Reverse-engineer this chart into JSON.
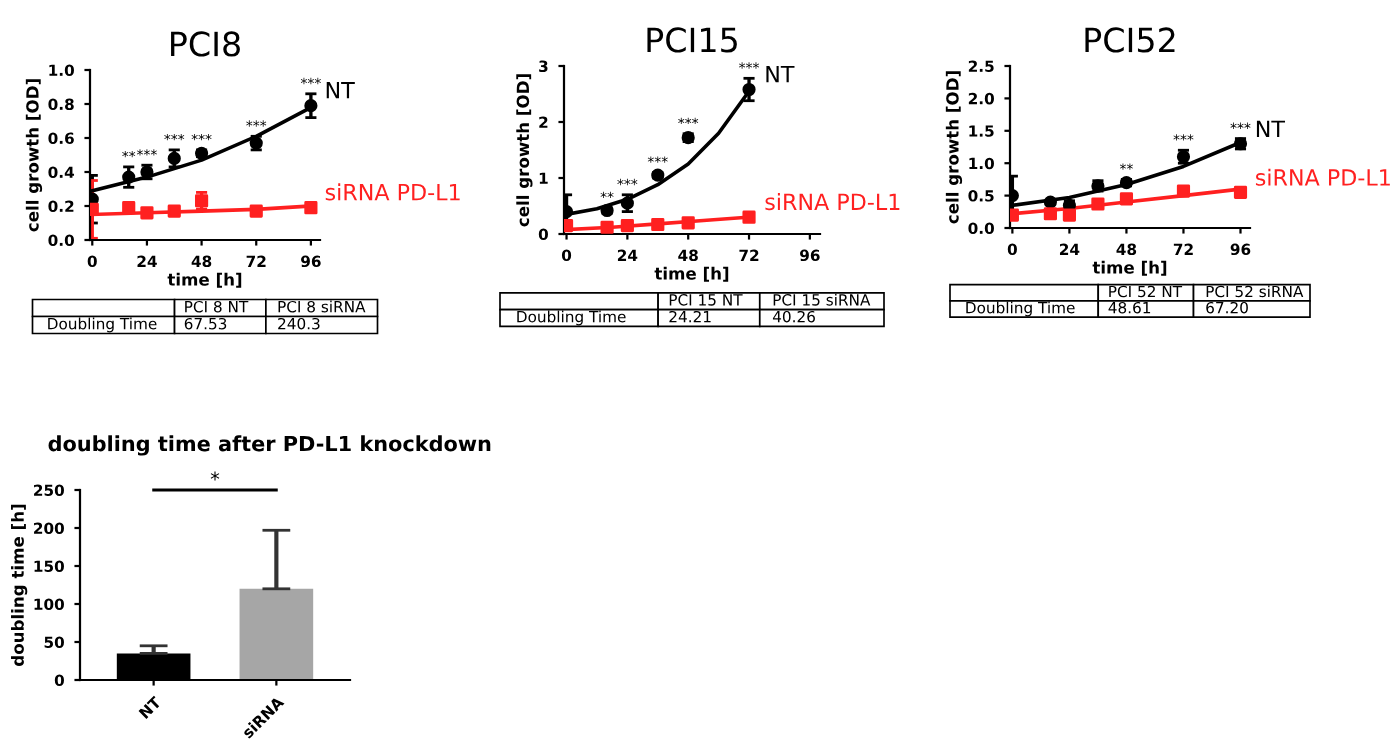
{
  "chart_data": [
    {
      "type": "line",
      "title": "PCI8",
      "xlabel": "time [h]",
      "ylabel": "cell growth [OD]",
      "xlim": [
        -1,
        100
      ],
      "ylim": [
        0,
        1.0
      ],
      "xticks": [
        0,
        24,
        48,
        72,
        96
      ],
      "yticks": [
        {
          "value": 0,
          "label": "0.0"
        },
        {
          "value": 0.2,
          "label": "0.2"
        },
        {
          "value": 0.4,
          "label": "0.4"
        },
        {
          "value": 0.6,
          "label": "0.6"
        },
        {
          "value": 0.8,
          "label": "0.8"
        },
        {
          "value": 1.0,
          "label": "1.0"
        }
      ],
      "grid": false,
      "legend": false,
      "series": [
        {
          "name": "NT",
          "type": "scatter",
          "marker": "circle",
          "color": "#000000",
          "x": [
            0,
            16,
            24,
            36,
            48,
            72,
            96
          ],
          "values": [
            0.24,
            0.37,
            0.4,
            0.48,
            0.51,
            0.57,
            0.79
          ],
          "errors": [
            0.14,
            0.06,
            0.04,
            0.05,
            0.02,
            0.04,
            0.07
          ]
        },
        {
          "name": "siRNA PD-L1",
          "type": "scatter",
          "marker": "square",
          "color": "#ff2020",
          "x": [
            0,
            16,
            24,
            36,
            48,
            72,
            96
          ],
          "values": [
            0.18,
            0.19,
            0.16,
            0.17,
            0.23,
            0.17,
            0.19
          ],
          "errors": [
            0.17,
            0.02,
            0.01,
            0.02,
            0.05,
            0.02,
            0.01
          ]
        },
        {
          "type": "line",
          "color": "#000000",
          "x": [
            0,
            24,
            48,
            72,
            96
          ],
          "values": [
            0.29,
            0.37,
            0.47,
            0.61,
            0.78
          ]
        },
        {
          "type": "line",
          "color": "#ff2020",
          "x": [
            0,
            24,
            48,
            72,
            96
          ],
          "values": [
            0.15,
            0.16,
            0.17,
            0.18,
            0.2
          ]
        }
      ],
      "annotations": [
        {
          "text": "**",
          "x": 16,
          "y": 0.37
        },
        {
          "text": "***",
          "x": 24,
          "y": 0.4
        },
        {
          "text": "***",
          "x": 36,
          "y": 0.48
        },
        {
          "text": "***",
          "x": 48,
          "y": 0.51
        },
        {
          "text": "***",
          "x": 72,
          "y": 0.57
        },
        {
          "text": "***",
          "x": 96,
          "y": 0.79
        },
        "PCI 8 NT",
        "PCI 8 siRNA",
        "Doubling Time",
        "67.53",
        "240.3"
      ]
    },
    {
      "type": "line",
      "title": "PCI15",
      "xlabel": "time [h]",
      "ylabel": "cell growth [OD]",
      "xlim": [
        -1,
        100
      ],
      "ylim": [
        0,
        3
      ],
      "xticks": [
        0,
        24,
        48,
        72,
        96
      ],
      "yticks": [
        0,
        1,
        2,
        3
      ],
      "grid": false,
      "legend": false,
      "series": [
        {
          "name": "NT",
          "type": "scatter",
          "marker": "circle",
          "color": "#000000",
          "x": [
            0,
            16,
            24,
            36,
            48,
            72
          ],
          "values": [
            0.4,
            0.42,
            0.55,
            1.05,
            1.72,
            2.58
          ],
          "errors": [
            0.3,
            0.05,
            0.15,
            0.05,
            0.07,
            0.2
          ]
        },
        {
          "name": "siRNA PD-L1",
          "type": "scatter",
          "marker": "square",
          "color": "#ff2020",
          "x": [
            0,
            16,
            24,
            36,
            48,
            72
          ],
          "values": [
            0.15,
            0.12,
            0.15,
            0.17,
            0.2,
            0.3
          ],
          "errors": [
            0.05,
            0.02,
            0.03,
            0.02,
            0.02,
            0.02
          ]
        },
        {
          "type": "line",
          "color": "#000000",
          "x": [
            0,
            12,
            24,
            36,
            48,
            60,
            72
          ],
          "values": [
            0.35,
            0.45,
            0.62,
            0.88,
            1.25,
            1.8,
            2.55
          ]
        },
        {
          "type": "line",
          "color": "#ff2020",
          "x": [
            0,
            18,
            36,
            54,
            72
          ],
          "values": [
            0.08,
            0.12,
            0.18,
            0.24,
            0.3
          ]
        }
      ],
      "annotations": [
        {
          "text": "**",
          "x": 16,
          "y": 0.42
        },
        {
          "text": "***",
          "x": 24,
          "y": 0.55
        },
        {
          "text": "***",
          "x": 36,
          "y": 1.05
        },
        {
          "text": "***",
          "x": 48,
          "y": 1.72
        },
        {
          "text": "***",
          "x": 72,
          "y": 2.58
        },
        "PCI 15 NT",
        "PCI 15 siRNA",
        "Doubling Time",
        "24.21",
        "40.26"
      ]
    },
    {
      "type": "line",
      "title": "PCI52",
      "xlabel": "time [h]",
      "ylabel": "cell growth [OD]",
      "xlim": [
        -1,
        100
      ],
      "ylim": [
        0,
        2.5
      ],
      "xticks": [
        0,
        24,
        48,
        72,
        96
      ],
      "yticks": [
        {
          "value": 0,
          "label": "0.0"
        },
        {
          "value": 0.5,
          "label": "0.5"
        },
        {
          "value": 1.0,
          "label": "1.0"
        },
        {
          "value": 1.5,
          "label": "1.5"
        },
        {
          "value": 2.0,
          "label": "2.0"
        },
        {
          "value": 2.5,
          "label": "2.5"
        }
      ],
      "grid": false,
      "legend": false,
      "series": [
        {
          "name": "NT",
          "type": "scatter",
          "marker": "circle",
          "color": "#000000",
          "x": [
            0,
            16,
            24,
            36,
            48,
            72,
            96
          ],
          "values": [
            0.5,
            0.4,
            0.35,
            0.65,
            0.7,
            1.1,
            1.3
          ],
          "errors": [
            0.3,
            0.03,
            0.07,
            0.08,
            0.05,
            0.1,
            0.08
          ]
        },
        {
          "name": "siRNA PD-L1",
          "type": "scatter",
          "marker": "square",
          "color": "#ff2020",
          "x": [
            0,
            16,
            24,
            36,
            48,
            72,
            96
          ],
          "values": [
            0.2,
            0.22,
            0.2,
            0.37,
            0.45,
            0.57,
            0.55
          ],
          "errors": [
            0.07,
            0.02,
            0.03,
            0.02,
            0.03,
            0.05,
            0.04
          ]
        },
        {
          "type": "line",
          "color": "#000000",
          "x": [
            0,
            24,
            48,
            72,
            96
          ],
          "values": [
            0.35,
            0.47,
            0.67,
            0.95,
            1.32
          ]
        },
        {
          "type": "line",
          "color": "#ff2020",
          "x": [
            0,
            24,
            48,
            72,
            96
          ],
          "values": [
            0.22,
            0.3,
            0.4,
            0.5,
            0.6
          ]
        }
      ],
      "annotations": [
        {
          "text": "**",
          "x": 48,
          "y": 0.7
        },
        {
          "text": "***",
          "x": 72,
          "y": 1.1
        },
        {
          "text": "***",
          "x": 96,
          "y": 1.3
        },
        "PCI 52 NT",
        "PCI 52 siRNA",
        "Doubling Time",
        "48.61",
        "67.20"
      ]
    },
    {
      "type": "bar",
      "title": "doubling time after PD-L1 knockdown",
      "ylabel": "doubling time [h]",
      "categories": [
        "NT",
        "siRNA"
      ],
      "values": [
        35,
        120
      ],
      "colors": [
        "#000000",
        "#a6a6a6"
      ],
      "errors": [
        [
          35,
          45
        ],
        [
          120,
          197
        ]
      ],
      "ylim": [
        0,
        250
      ],
      "yticks": [
        0,
        50,
        100,
        150,
        200,
        250
      ],
      "grid": false,
      "legend": false,
      "annotations": [
        "*"
      ]
    }
  ]
}
